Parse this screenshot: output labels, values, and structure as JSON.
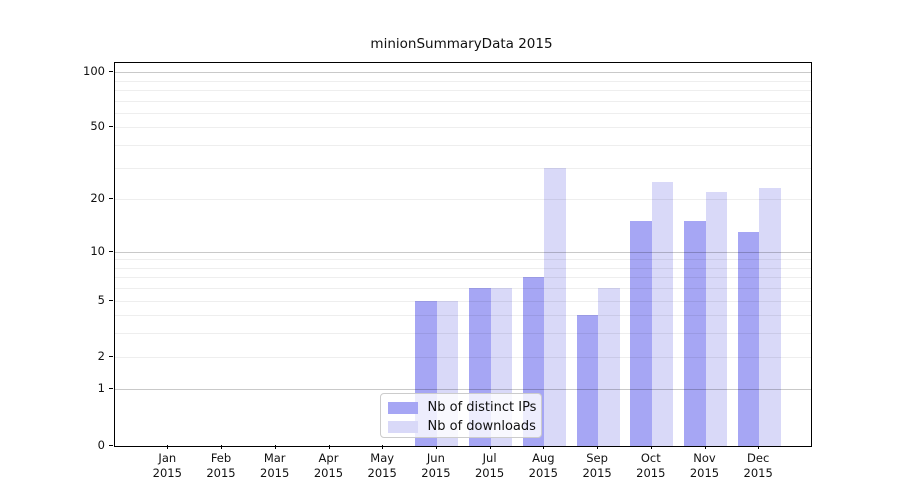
{
  "title": "minionSummaryData 2015",
  "chart_data": {
    "type": "bar",
    "title": "minionSummaryData 2015",
    "categories": [
      "Jan",
      "Feb",
      "Mar",
      "Apr",
      "May",
      "Jun",
      "Jul",
      "Aug",
      "Sep",
      "Oct",
      "Nov",
      "Dec"
    ],
    "x_tick_year": "2015",
    "series": [
      {
        "name": "Nb of distinct IPs",
        "color": "#a6a6f4",
        "values": [
          0,
          0,
          0,
          0,
          0,
          5,
          6,
          7,
          4,
          15,
          15,
          13
        ]
      },
      {
        "name": "Nb of downloads",
        "color": "#d9d9f8",
        "values": [
          0,
          0,
          0,
          0,
          0,
          5,
          6,
          30,
          6,
          25,
          22,
          23
        ]
      }
    ],
    "yscale": "log1p",
    "ylim": [
      0,
      112
    ],
    "y_tick_labels": [
      0,
      1,
      2,
      5,
      10,
      20,
      50,
      100
    ],
    "y_major_gridlines": [
      1,
      10,
      100
    ],
    "y_minor_gridlines": [
      2,
      3,
      4,
      5,
      6,
      7,
      8,
      9,
      20,
      30,
      40,
      50,
      60,
      70,
      80,
      90
    ],
    "grid": "horizontal, drawn above bars",
    "legend_position": "lower center inside axes"
  }
}
